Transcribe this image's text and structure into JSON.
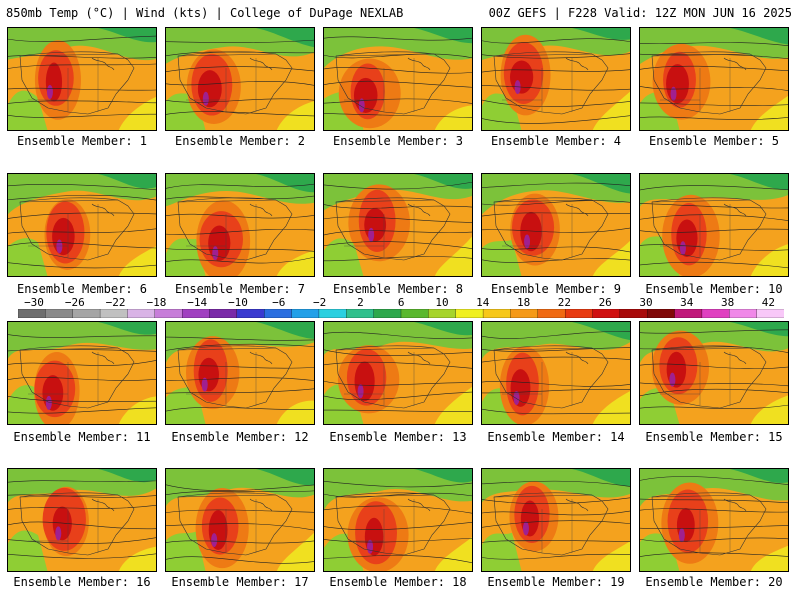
{
  "header": {
    "left_title": "850mb Temp (°C) | Wind (kts) | College of DuPage NEXLAB",
    "right_title": "00Z GEFS | F228 Valid: 12Z MON JUN 16 2025"
  },
  "members": [
    {
      "label": "Ensemble Member: 1"
    },
    {
      "label": "Ensemble Member: 2"
    },
    {
      "label": "Ensemble Member: 3"
    },
    {
      "label": "Ensemble Member: 4"
    },
    {
      "label": "Ensemble Member: 5"
    },
    {
      "label": "Ensemble Member: 6"
    },
    {
      "label": "Ensemble Member: 7"
    },
    {
      "label": "Ensemble Member: 8"
    },
    {
      "label": "Ensemble Member: 9"
    },
    {
      "label": "Ensemble Member: 10"
    },
    {
      "label": "Ensemble Member: 11"
    },
    {
      "label": "Ensemble Member: 12"
    },
    {
      "label": "Ensemble Member: 13"
    },
    {
      "label": "Ensemble Member: 14"
    },
    {
      "label": "Ensemble Member: 15"
    },
    {
      "label": "Ensemble Member: 16"
    },
    {
      "label": "Ensemble Member: 17"
    },
    {
      "label": "Ensemble Member: 18"
    },
    {
      "label": "Ensemble Member: 19"
    },
    {
      "label": "Ensemble Member: 20"
    }
  ],
  "colorbar": {
    "tick_labels": [
      "−30",
      "−26",
      "−22",
      "−18",
      "−14",
      "−10",
      "−6",
      "−2",
      "2",
      "6",
      "10",
      "14",
      "18",
      "22",
      "26",
      "30",
      "34",
      "38",
      "42"
    ],
    "colors": [
      "#6e6e6e",
      "#8a8a8a",
      "#a5a5a5",
      "#c0c0c0",
      "#d9b3e6",
      "#c77dd9",
      "#a040c0",
      "#7a2aa8",
      "#3a3ad0",
      "#2b6fe0",
      "#22a0e8",
      "#2ad0e0",
      "#30c08c",
      "#2ea84c",
      "#5ab82e",
      "#a6d42a",
      "#f0f020",
      "#f7c818",
      "#f59a18",
      "#f06a12",
      "#e83a10",
      "#d01010",
      "#a80a0a",
      "#800808",
      "#c0187a",
      "#e040c0",
      "#f088e8",
      "#f8c8f8"
    ]
  }
}
